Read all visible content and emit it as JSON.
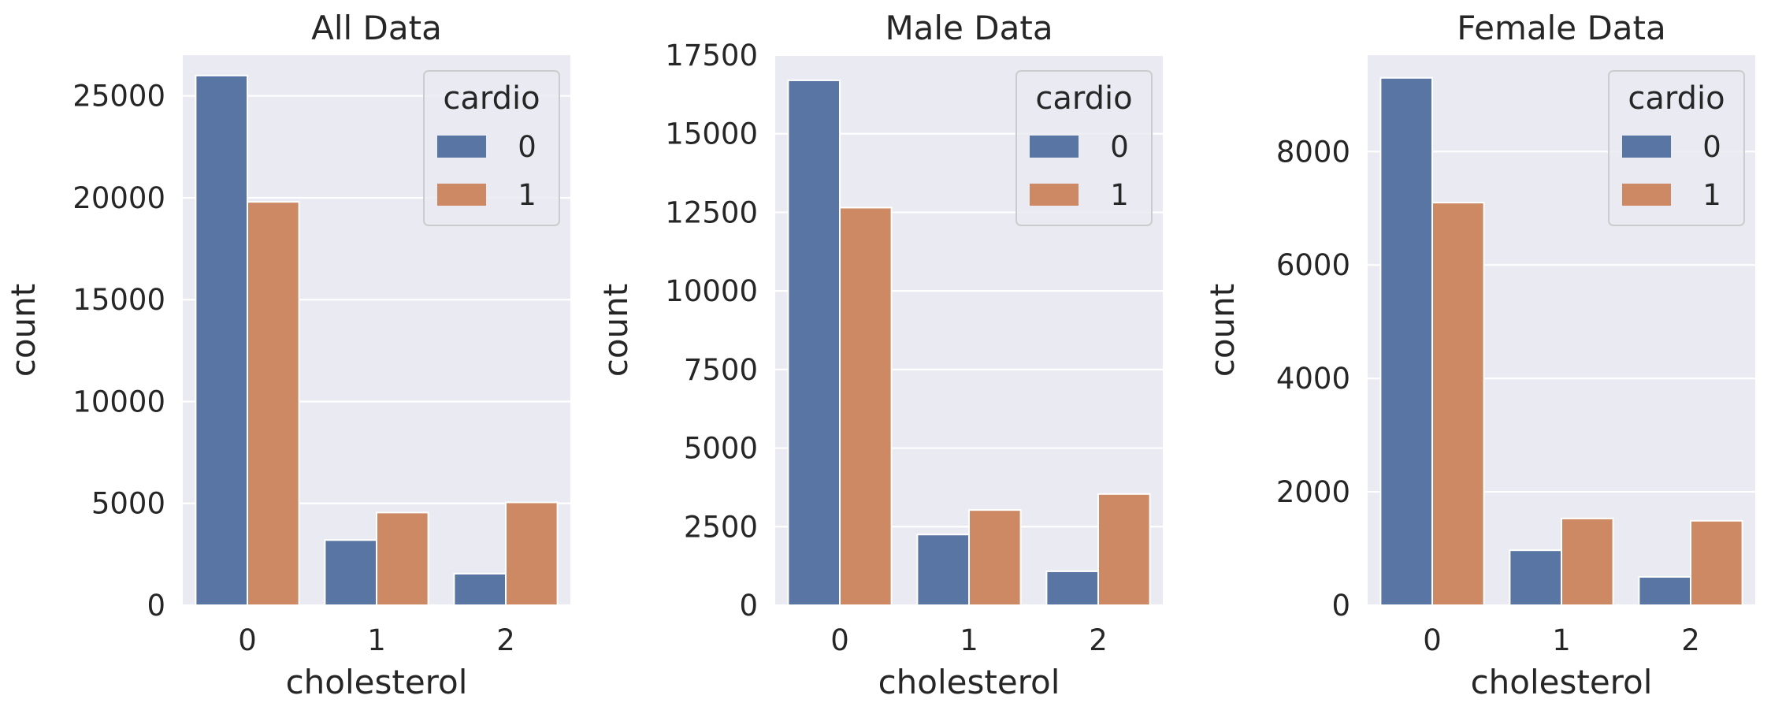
{
  "colors": {
    "background": "#eaeaf2",
    "grid": "#ffffff",
    "series_0": "#5875a4",
    "series_1": "#cc8963"
  },
  "chart_data": [
    {
      "type": "bar",
      "title": "All Data",
      "xlabel": "cholesterol",
      "ylabel": "count",
      "categories": [
        "0",
        "1",
        "2"
      ],
      "ylim": [
        0,
        27000
      ],
      "yticks": [
        0,
        5000,
        10000,
        15000,
        20000,
        25000
      ],
      "grid": true,
      "legend": {
        "title": "cardio",
        "placement": "top-right"
      },
      "series": [
        {
          "name": "0",
          "values": [
            26000,
            3200,
            1550
          ]
        },
        {
          "name": "1",
          "values": [
            19800,
            4550,
            5050
          ]
        }
      ]
    },
    {
      "type": "bar",
      "title": "Male Data",
      "xlabel": "cholesterol",
      "ylabel": "count",
      "categories": [
        "0",
        "1",
        "2"
      ],
      "ylim": [
        0,
        17500
      ],
      "yticks": [
        0,
        2500,
        5000,
        7500,
        10000,
        12500,
        15000,
        17500
      ],
      "grid": true,
      "legend": {
        "title": "cardio",
        "placement": "top-right"
      },
      "series": [
        {
          "name": "0",
          "values": [
            16700,
            2250,
            1080
          ]
        },
        {
          "name": "1",
          "values": [
            12650,
            3030,
            3540
          ]
        }
      ]
    },
    {
      "type": "bar",
      "title": "Female Data",
      "xlabel": "cholesterol",
      "ylabel": "count",
      "categories": [
        "0",
        "1",
        "2"
      ],
      "ylim": [
        0,
        9700
      ],
      "yticks": [
        0,
        2000,
        4000,
        6000,
        8000
      ],
      "grid": true,
      "legend": {
        "title": "cardio",
        "placement": "top-right"
      },
      "series": [
        {
          "name": "0",
          "values": [
            9300,
            970,
            500
          ]
        },
        {
          "name": "1",
          "values": [
            7100,
            1530,
            1490
          ]
        }
      ]
    }
  ]
}
